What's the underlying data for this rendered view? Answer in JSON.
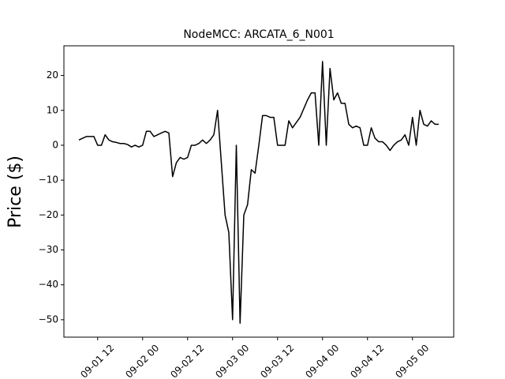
{
  "chart_data": {
    "type": "line",
    "title": "NodeMCC: ARCATA_6_N001",
    "y_label": "Price ($)",
    "x": [
      "09-01 07",
      "09-01 08",
      "09-01 09",
      "09-01 10",
      "09-01 11",
      "09-01 12",
      "09-01 13",
      "09-01 14",
      "09-01 15",
      "09-01 16",
      "09-01 17",
      "09-01 18",
      "09-01 19",
      "09-01 20",
      "09-01 21",
      "09-01 22",
      "09-01 23",
      "09-02 00",
      "09-02 01",
      "09-02 02",
      "09-02 03",
      "09-02 04",
      "09-02 05",
      "09-02 06",
      "09-02 07",
      "09-02 08",
      "09-02 09",
      "09-02 10",
      "09-02 11",
      "09-02 12",
      "09-02 13",
      "09-02 14",
      "09-02 15",
      "09-02 16",
      "09-02 17",
      "09-02 18",
      "09-02 19",
      "09-02 20",
      "09-02 21",
      "09-02 22",
      "09-02 23",
      "09-03 00",
      "09-03 01",
      "09-03 02",
      "09-03 03",
      "09-03 04",
      "09-03 05",
      "09-03 06",
      "09-03 07",
      "09-03 08",
      "09-03 09",
      "09-03 10",
      "09-03 11",
      "09-03 12",
      "09-03 13",
      "09-03 14",
      "09-03 15",
      "09-03 16",
      "09-03 17",
      "09-03 18",
      "09-03 19",
      "09-03 20",
      "09-03 21",
      "09-03 22",
      "09-03 23",
      "09-04 00",
      "09-04 01",
      "09-04 02",
      "09-04 03",
      "09-04 04",
      "09-04 05",
      "09-04 06",
      "09-04 07",
      "09-04 08",
      "09-04 09",
      "09-04 10",
      "09-04 11",
      "09-04 12",
      "09-04 13",
      "09-04 14",
      "09-04 15",
      "09-04 16",
      "09-04 17",
      "09-04 18",
      "09-04 19",
      "09-04 20",
      "09-04 21",
      "09-04 22",
      "09-04 23",
      "09-05 00",
      "09-05 01",
      "09-05 02",
      "09-05 03",
      "09-05 04",
      "09-05 05",
      "09-05 06",
      "09-05 07"
    ],
    "series": [
      {
        "color": "#000000",
        "values": [
          1.5,
          2,
          2.5,
          2.5,
          2.5,
          0,
          0,
          3,
          1.5,
          1,
          0.8,
          0.5,
          0.5,
          0.2,
          -0.5,
          0,
          -0.5,
          0,
          4,
          4,
          2.5,
          3,
          3.5,
          4,
          3.5,
          -9,
          -5,
          -3.5,
          -4,
          -3.5,
          0,
          0,
          0.5,
          1.5,
          0.5,
          1.5,
          3,
          10,
          -5,
          -20,
          -25,
          -50,
          0,
          -51,
          -20,
          -17,
          -7,
          -8,
          0,
          8.5,
          8.5,
          8,
          8,
          0,
          0,
          0,
          7,
          5,
          6.5,
          8,
          10.5,
          13,
          15,
          15,
          0,
          24,
          0,
          22,
          13,
          15,
          12,
          12,
          6,
          5,
          5.5,
          5,
          0,
          0,
          5,
          2,
          1,
          1,
          0,
          -1.5,
          0,
          1,
          1.5,
          3,
          0,
          8,
          0,
          10,
          6,
          5.5,
          7,
          6,
          6
        ]
      }
    ],
    "xlim": [
      "09-01 03",
      "09-05 11"
    ],
    "xticks": [
      "09-01 12",
      "09-02 00",
      "09-02 12",
      "09-03 00",
      "09-03 12",
      "09-04 00",
      "09-04 12",
      "09-05 00"
    ],
    "ylim": [
      -55,
      28.5
    ],
    "yticks": [
      {
        "value": -50,
        "label": "−50"
      },
      {
        "value": -40,
        "label": "−40"
      },
      {
        "value": -30,
        "label": "−30"
      },
      {
        "value": -20,
        "label": "−20"
      },
      {
        "value": -10,
        "label": "−10"
      },
      0,
      10,
      20
    ]
  }
}
